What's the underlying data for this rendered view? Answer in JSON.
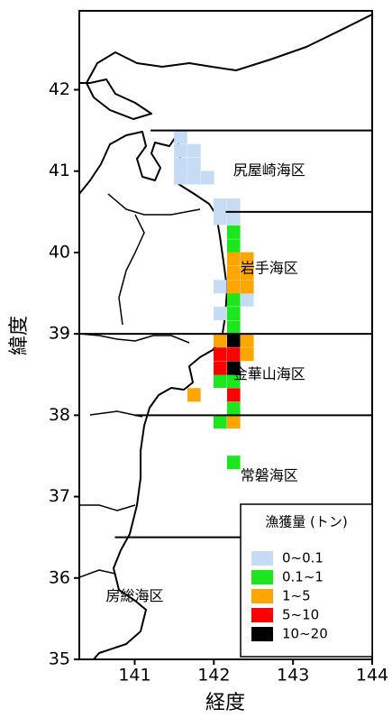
{
  "chart_data": {
    "type": "grid-map",
    "x_label": "経度",
    "y_label": "緯度",
    "xlim": [
      140.3,
      144
    ],
    "ylim": [
      35,
      42.97
    ],
    "xticks": [
      141,
      142,
      143,
      144
    ],
    "yticks": [
      35,
      36,
      37,
      38,
      39,
      40,
      41,
      42
    ],
    "legend_title": "漁獲量 (トン)",
    "legend_position": "bottom-right",
    "series": [
      {
        "name": "0~0.1",
        "color": "#c6dcf4",
        "x": [
          141.58,
          141.58,
          141.58,
          141.58,
          141.75,
          141.75,
          141.75,
          141.92,
          142.08,
          142.25,
          142.08,
          142.25,
          142.08,
          142.08,
          142.42
        ],
        "y": [
          41.42,
          41.25,
          41.08,
          40.92,
          41.25,
          41.08,
          40.92,
          40.92,
          40.58,
          40.58,
          40.42,
          40.42,
          39.58,
          39.25,
          39.42
        ]
      },
      {
        "name": "0.1~1",
        "color": "#1ee61e",
        "x": [
          142.25,
          142.25,
          142.25,
          142.25,
          142.25,
          142.08,
          142.25,
          142.25,
          142.08,
          142.25
        ],
        "y": [
          40.25,
          40.08,
          39.42,
          39.25,
          39.08,
          38.42,
          38.42,
          38.08,
          37.92,
          37.42
        ]
      },
      {
        "name": "1~5",
        "color": "#ffa500",
        "x": [
          142.25,
          142.42,
          142.25,
          142.42,
          142.25,
          142.42,
          142.08,
          142.42,
          142.42,
          141.75,
          142.25
        ],
        "y": [
          39.92,
          39.92,
          39.75,
          39.75,
          39.58,
          39.58,
          38.92,
          38.92,
          38.75,
          38.25,
          37.92
        ]
      },
      {
        "name": "5~10",
        "color": "#ff0000",
        "x": [
          142.08,
          142.08,
          142.25,
          142.25
        ],
        "y": [
          38.75,
          38.58,
          38.75,
          38.25
        ]
      },
      {
        "name": "10~20",
        "color": "#000000",
        "x": [
          142.25,
          142.25
        ],
        "y": [
          38.92,
          38.58
        ]
      }
    ],
    "boundaries": [
      {
        "lat": 41.5,
        "from": 141.2
      },
      {
        "lat": 40.5,
        "from": 142.15
      },
      {
        "lat": 39,
        "from": 140.3
      },
      {
        "lat": 38,
        "from": 141
      },
      {
        "lat": 36.5,
        "from": 140.75
      }
    ],
    "annotations": [
      {
        "text": "尻屋崎海区",
        "x": 142.7,
        "y": 41
      },
      {
        "text": "岩手海区",
        "x": 142.7,
        "y": 39.8
      },
      {
        "text": "金華山海区",
        "x": 142.7,
        "y": 38.5
      },
      {
        "text": "常磐海区",
        "x": 142.7,
        "y": 37.25
      },
      {
        "text": "房総海区",
        "x": 141.0,
        "y": 35.77
      }
    ]
  }
}
